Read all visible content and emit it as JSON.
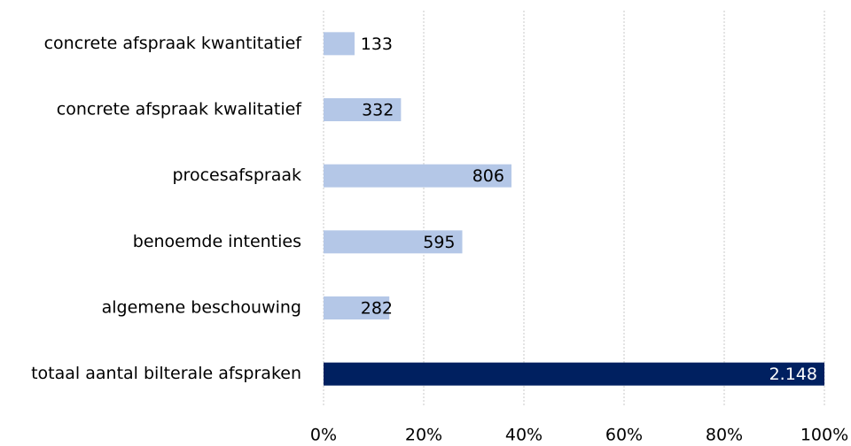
{
  "chart_data": {
    "type": "barh",
    "categories": [
      "concrete afspraak kwantitatief",
      "concrete afspraak kwalitatief",
      "procesafspraak",
      "benoemde intenties",
      "algemene beschouwing",
      "totaal aantal bilterale afspraken"
    ],
    "values": [
      6.19,
      15.46,
      37.52,
      27.7,
      13.13,
      100
    ],
    "counts": [
      133,
      332,
      806,
      595,
      282,
      {
        "value": 2148,
        "label": "2.148"
      }
    ],
    "colors": [
      "#b4c7e7",
      "#b4c7e7",
      "#b4c7e7",
      "#b4c7e7",
      "#b4c7e7",
      "#002060"
    ],
    "xlim": [
      0,
      100
    ],
    "xticks": [
      {
        "value": 0,
        "label": "0%"
      },
      {
        "value": 20,
        "label": "20%"
      },
      {
        "value": 40,
        "label": "40%"
      },
      {
        "value": 60,
        "label": "60%"
      },
      {
        "value": 80,
        "label": "80%"
      },
      {
        "value": 100,
        "label": "100%"
      }
    ],
    "grid": true
  }
}
